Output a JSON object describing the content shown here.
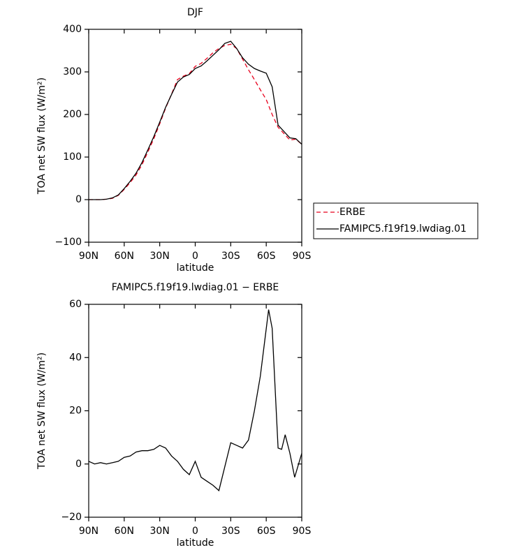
{
  "chart_data": [
    {
      "type": "line",
      "title": "DJF",
      "xlabel": "latitude",
      "ylabel": "TOA net SW flux (W/m²)",
      "x": [
        90,
        85,
        80,
        75,
        70,
        65,
        60,
        55,
        50,
        45,
        40,
        35,
        30,
        25,
        20,
        15,
        10,
        5,
        0,
        -5,
        -10,
        -15,
        -20,
        -25,
        -30,
        -35,
        -40,
        -45,
        -50,
        -55,
        -60,
        -65,
        -70,
        -75,
        -80,
        -85,
        -90
      ],
      "series": [
        {
          "name": "ERBE",
          "color": "#e8001c",
          "linestyle": "dashed",
          "values": [
            0,
            0,
            0,
            1,
            3,
            10,
            24,
            40,
            58,
            82,
            112,
            143,
            178,
            215,
            248,
            282,
            290,
            296,
            313,
            320,
            332,
            345,
            355,
            362,
            365,
            355,
            330,
            305,
            282,
            258,
            235,
            200,
            170,
            155,
            140,
            142,
            130
          ]
        },
        {
          "name": "FAMIPC5.f19f19.lwdiag.01",
          "color": "#000000",
          "linestyle": "solid",
          "values": [
            0,
            0,
            0,
            1,
            4,
            11,
            26,
            43,
            62,
            87,
            117,
            148,
            182,
            217,
            247,
            276,
            288,
            294,
            308,
            314,
            326,
            339,
            352,
            367,
            372,
            355,
            333,
            318,
            308,
            302,
            297,
            265,
            175,
            160,
            145,
            143,
            130
          ]
        }
      ],
      "xlim": [
        90,
        -90
      ],
      "xticks": [
        {
          "value": 90,
          "label": "90N"
        },
        {
          "value": 60,
          "label": "60N"
        },
        {
          "value": 30,
          "label": "30N"
        },
        0,
        {
          "value": -30,
          "label": "30S"
        },
        {
          "value": -60,
          "label": "60S"
        },
        {
          "value": -90,
          "label": "90S"
        }
      ],
      "ylim": [
        -100,
        400
      ],
      "yticks": [
        {
          "value": -100,
          "label": "−100"
        },
        0,
        100,
        200,
        300,
        400
      ],
      "legend": "right"
    },
    {
      "type": "line",
      "title": "FAMIPC5.f19f19.lwdiag.01 − ERBE",
      "xlabel": "latitude",
      "ylabel": "TOA net SW flux (W/m²)",
      "x": [
        90,
        85,
        80,
        75,
        70,
        65,
        60,
        55,
        50,
        45,
        40,
        35,
        30,
        25,
        20,
        15,
        10,
        5,
        0,
        -5,
        -10,
        -15,
        -20,
        -25,
        -30,
        -35,
        -40,
        -45,
        -50,
        -55,
        -62,
        -65,
        -70,
        -73,
        -76,
        -80,
        -84,
        -90
      ],
      "series": [
        {
          "color": "#000000",
          "linestyle": "solid",
          "values": [
            1,
            0,
            0.5,
            0,
            0.5,
            1,
            2.5,
            3,
            4.5,
            5,
            5,
            5.5,
            7,
            6,
            3,
            1,
            -2,
            -4,
            1,
            -5,
            -6.5,
            -8,
            -10,
            -1,
            8,
            7,
            6,
            9,
            20,
            33,
            58,
            51,
            6,
            5.5,
            11,
            4,
            -5,
            4
          ]
        }
      ],
      "xlim": [
        90,
        -90
      ],
      "xticks": [
        {
          "value": 90,
          "label": "90N"
        },
        {
          "value": 60,
          "label": "60N"
        },
        {
          "value": 30,
          "label": "30N"
        },
        0,
        {
          "value": -30,
          "label": "30S"
        },
        {
          "value": -60,
          "label": "60S"
        },
        {
          "value": -90,
          "label": "90S"
        }
      ],
      "ylim": [
        -20,
        60
      ],
      "yticks": [
        {
          "value": -20,
          "label": "−20"
        },
        0,
        20,
        40,
        60
      ]
    }
  ]
}
